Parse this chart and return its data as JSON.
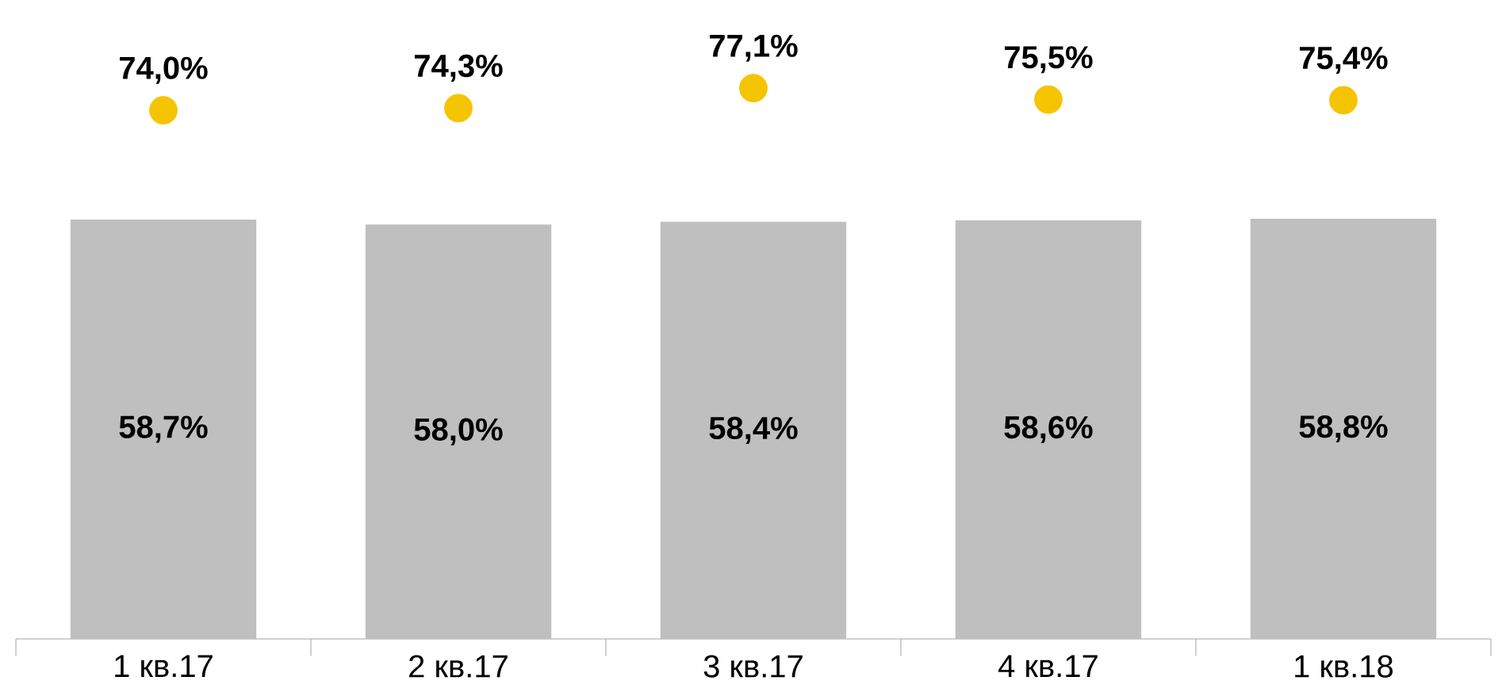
{
  "chart_data": {
    "type": "bar",
    "categories": [
      "1 кв.17",
      "2 кв.17",
      "3 кв.17",
      "4 кв.17",
      "1 кв.18"
    ],
    "series": [
      {
        "color": "#bfbfbf",
        "values": [
          58.7,
          58.0,
          58.4,
          58.6,
          58.8
        ],
        "value_labels": [
          "58,7%",
          "58,0%",
          "58,4%",
          "58,6%",
          "58,8%"
        ]
      },
      {
        "type": "scatter",
        "color": "#f5c400",
        "values": [
          74.0,
          74.3,
          77.1,
          75.5,
          75.4
        ],
        "value_labels": [
          "74,0%",
          "74,3%",
          "77,1%",
          "75,5%",
          "75,4%"
        ]
      }
    ]
  }
}
